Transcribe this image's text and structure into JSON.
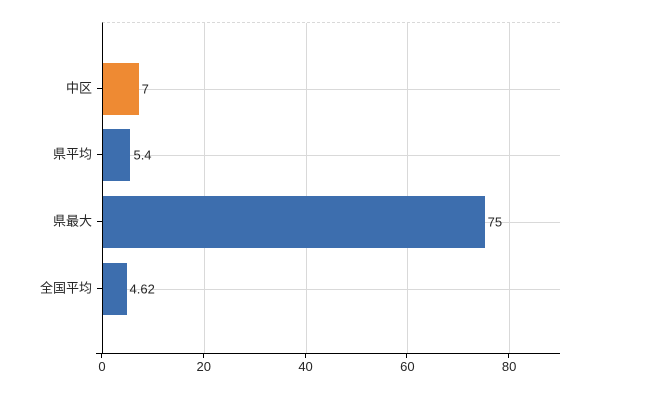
{
  "chart_data": {
    "type": "bar",
    "orientation": "horizontal",
    "title": "",
    "xlabel": "",
    "ylabel": "",
    "categories": [
      "中区",
      "県平均",
      "県最大",
      "全国平均"
    ],
    "values": [
      7,
      5.4,
      75,
      4.62
    ],
    "value_labels": [
      "7",
      "5.4",
      "75",
      "4.62"
    ],
    "bar_colors": [
      "#EE8A33",
      "#3D6EAE",
      "#3D6EAE",
      "#3D6EAE"
    ],
    "x_ticks": [
      "0",
      "20",
      "40",
      "60",
      "80"
    ],
    "x_tick_values": [
      0,
      20,
      40,
      60,
      80
    ],
    "xlim": [
      0,
      90
    ],
    "grid": "on",
    "legend": "none",
    "colors": {
      "bar_default": "#3D6EAE",
      "bar_highlight": "#EE8A33",
      "gridline": "#D9D9D9",
      "axis": "#000000",
      "text": "#262626",
      "background": "#FFFFFF"
    }
  }
}
